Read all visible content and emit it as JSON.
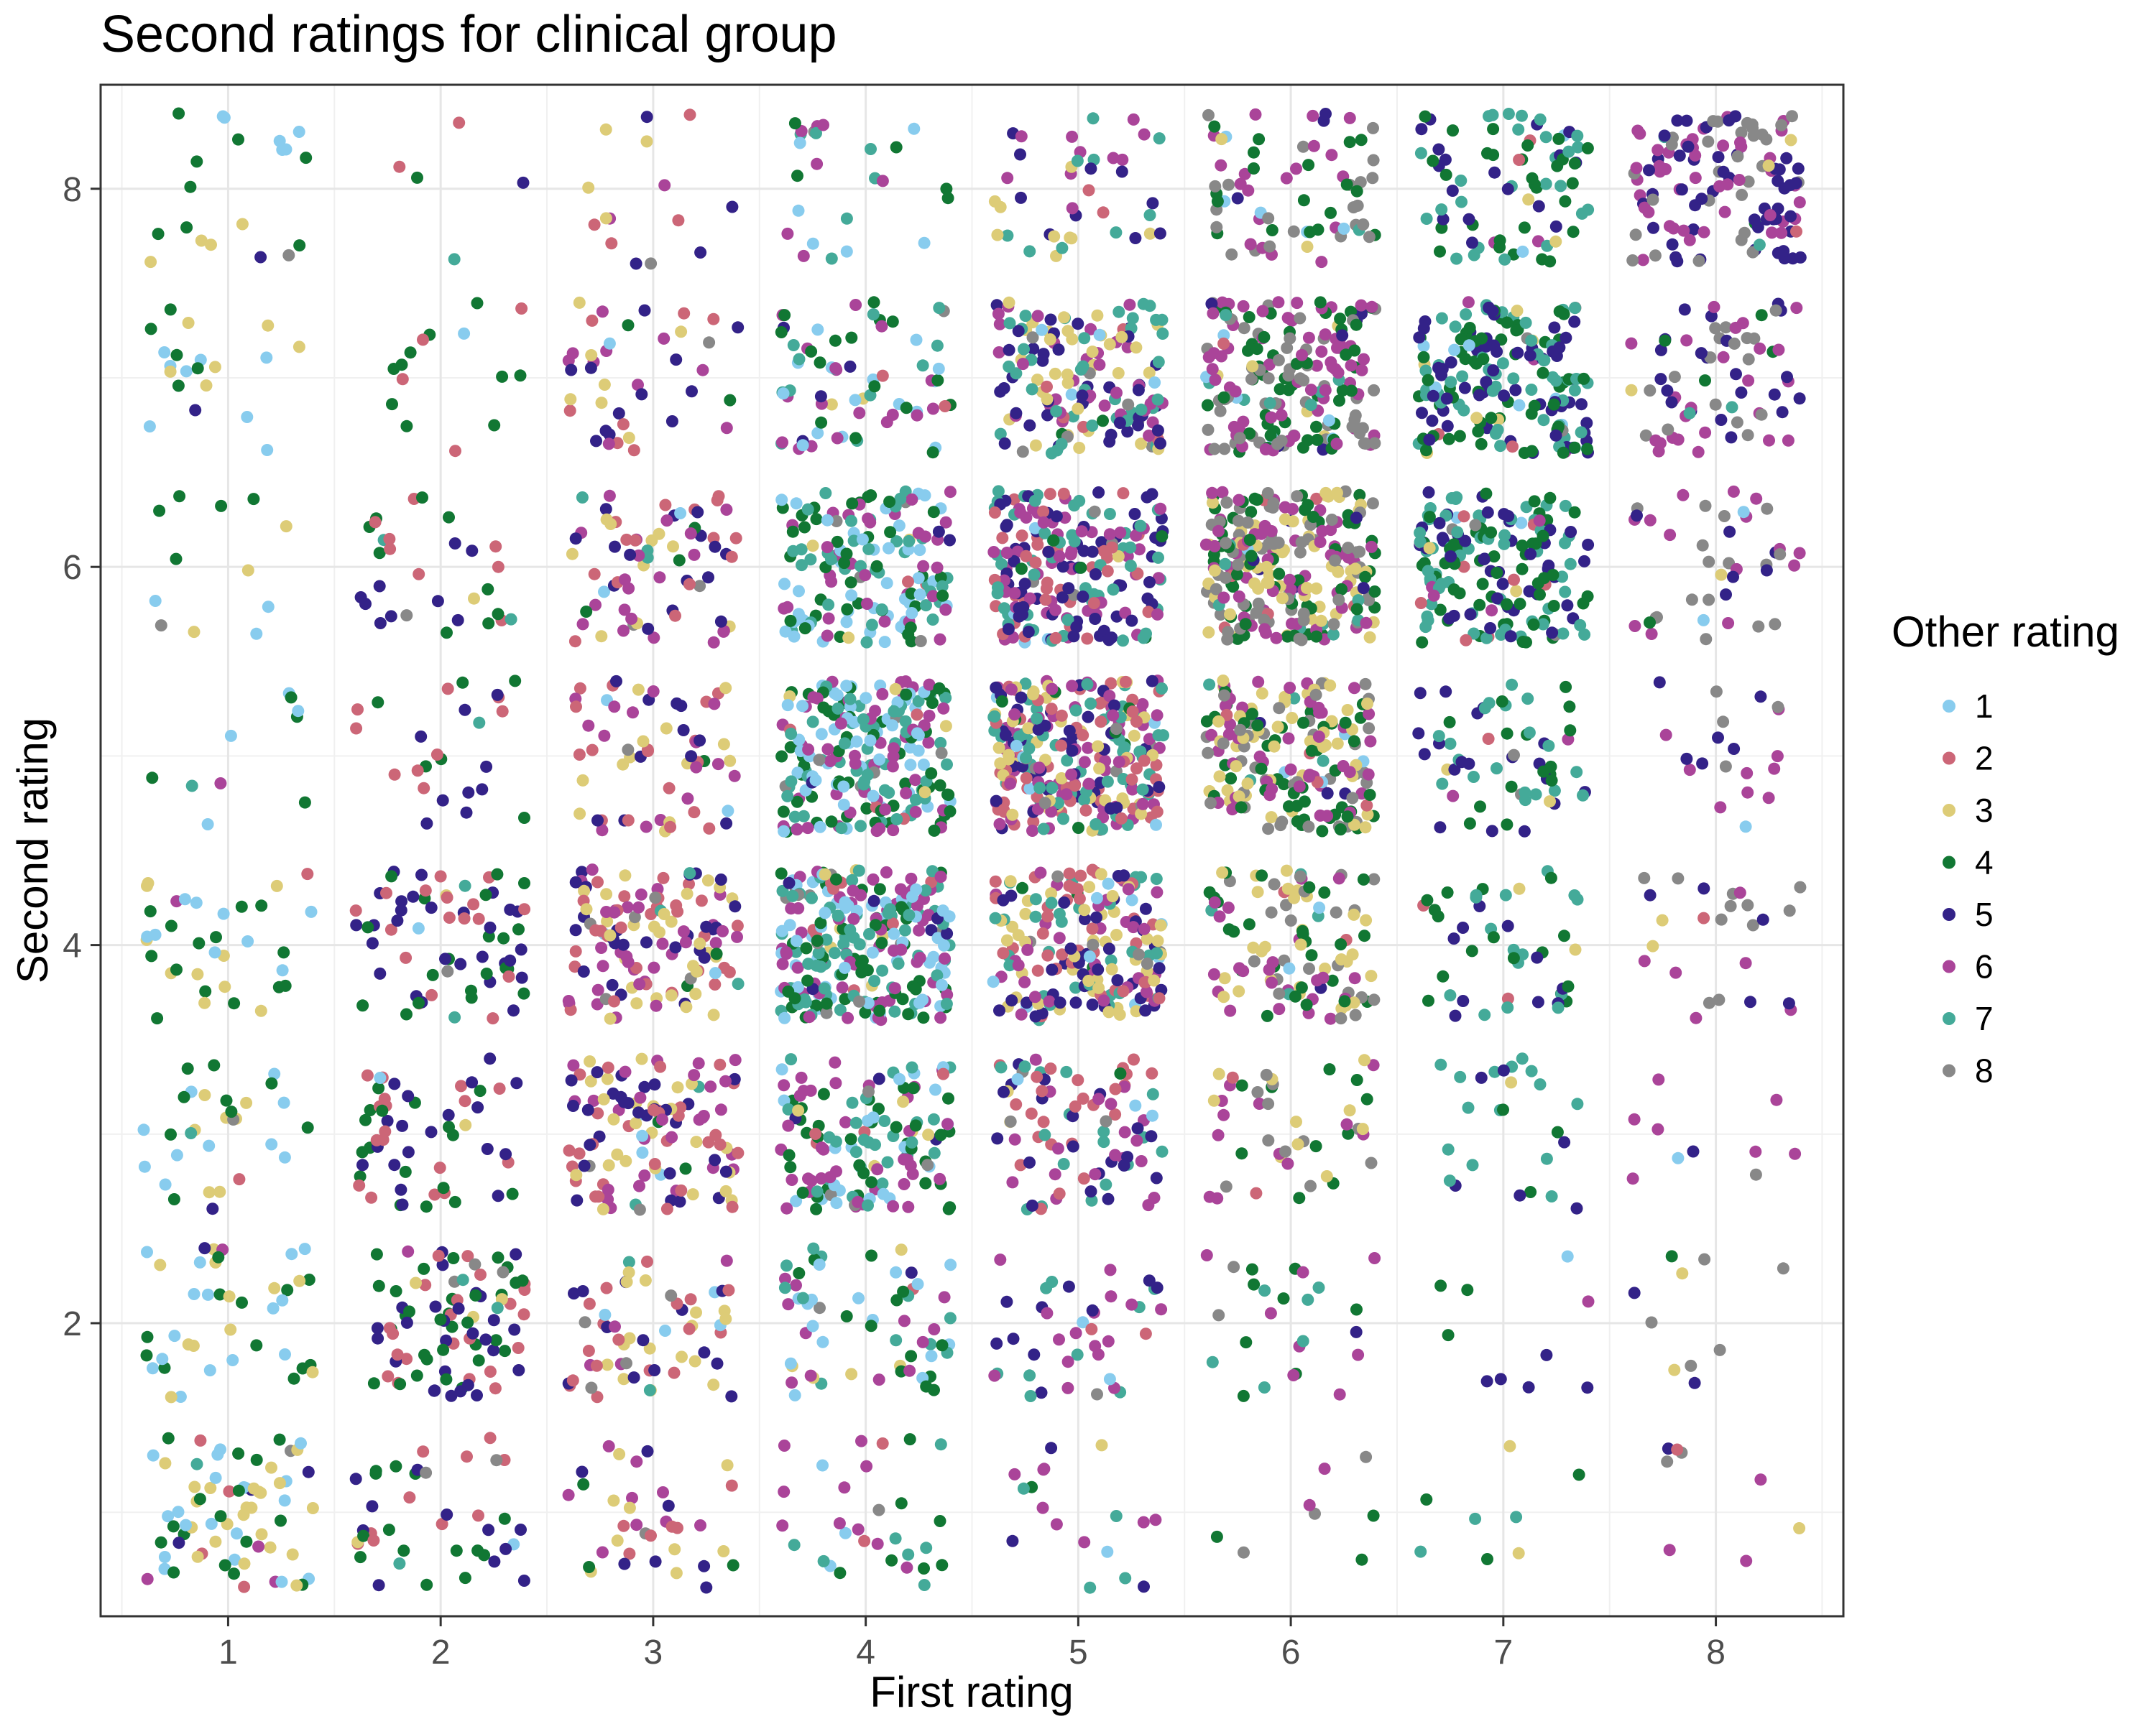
{
  "chart_data": {
    "type": "scatter",
    "title": "Second ratings for clinical group",
    "xlabel": "First rating",
    "ylabel": "Second rating",
    "xlim": [
      0.4,
      8.6
    ],
    "ylim": [
      0.45,
      8.55
    ],
    "xticks": [
      1,
      2,
      3,
      4,
      5,
      6,
      7,
      8
    ],
    "yticks": [
      2,
      4,
      6,
      8
    ],
    "grid": true,
    "jitter": 0.4,
    "legend": {
      "title": "Other rating",
      "placement": "right",
      "entries": [
        {
          "label": "1",
          "color": "#88CCEE"
        },
        {
          "label": "2",
          "color": "#CC6677"
        },
        {
          "label": "3",
          "color": "#DDCC77"
        },
        {
          "label": "4",
          "color": "#117733"
        },
        {
          "label": "5",
          "color": "#332288"
        },
        {
          "label": "6",
          "color": "#AA4499"
        },
        {
          "label": "7",
          "color": "#44AA99"
        },
        {
          "label": "8",
          "color": "#888888"
        }
      ]
    },
    "cells": {
      "x": [
        1,
        2,
        3,
        4,
        5,
        6,
        7,
        8
      ],
      "y": [
        1,
        2,
        3,
        4,
        5,
        6,
        7,
        8
      ],
      "counts": [
        [
          70,
          40,
          35,
          30,
          18,
          8,
          8,
          8
        ],
        [
          40,
          90,
          60,
          60,
          40,
          25,
          10,
          10
        ],
        [
          30,
          55,
          120,
          140,
          90,
          45,
          25,
          10
        ],
        [
          35,
          70,
          130,
          260,
          200,
          110,
          45,
          25
        ],
        [
          10,
          25,
          60,
          230,
          300,
          200,
          60,
          20
        ],
        [
          12,
          30,
          70,
          160,
          220,
          260,
          180,
          40
        ],
        [
          20,
          15,
          40,
          70,
          160,
          200,
          190,
          70
        ],
        [
          20,
          5,
          15,
          25,
          40,
          70,
          80,
          130
        ]
      ],
      "dominant_other_ratings": [
        [
          [
            1,
            4,
            3
          ],
          [
            2,
            4,
            5
          ],
          [
            3,
            5,
            2,
            6
          ],
          [
            4,
            6,
            7,
            1
          ],
          [
            5,
            6,
            7
          ],
          [
            6,
            4,
            8
          ],
          [
            7,
            4,
            5
          ],
          [
            8,
            6,
            5
          ]
        ],
        [
          [
            1,
            4,
            3
          ],
          [
            2,
            5,
            4
          ],
          [
            3,
            5,
            2,
            6
          ],
          [
            4,
            6,
            7,
            1
          ],
          [
            5,
            6,
            7
          ],
          [
            6,
            4,
            7
          ],
          [
            7,
            4,
            5
          ],
          [
            8,
            6,
            5
          ]
        ],
        [
          [
            1,
            4,
            3
          ],
          [
            2,
            4,
            5
          ],
          [
            3,
            5,
            2,
            6
          ],
          [
            4,
            6,
            7,
            1
          ],
          [
            5,
            2,
            6,
            7
          ],
          [
            6,
            4,
            8,
            3
          ],
          [
            7,
            4,
            5
          ],
          [
            8,
            6,
            5
          ]
        ],
        [
          [
            1,
            4,
            3
          ],
          [
            2,
            4,
            5
          ],
          [
            3,
            5,
            2,
            6
          ],
          [
            4,
            6,
            7,
            1
          ],
          [
            5,
            2,
            6,
            3,
            7
          ],
          [
            6,
            4,
            8,
            3
          ],
          [
            7,
            4,
            5
          ],
          [
            8,
            6,
            5
          ]
        ],
        [
          [
            1,
            4,
            3
          ],
          [
            2,
            4,
            5
          ],
          [
            3,
            5,
            2,
            6
          ],
          [
            4,
            6,
            7,
            1
          ],
          [
            5,
            2,
            6,
            3,
            7
          ],
          [
            6,
            4,
            8,
            3
          ],
          [
            7,
            4,
            5
          ],
          [
            8,
            6,
            5
          ]
        ],
        [
          [
            1,
            4,
            3
          ],
          [
            2,
            4,
            5
          ],
          [
            3,
            5,
            2,
            6
          ],
          [
            4,
            6,
            7,
            1
          ],
          [
            5,
            2,
            6,
            7
          ],
          [
            6,
            4,
            8,
            3
          ],
          [
            7,
            4,
            5
          ],
          [
            8,
            6,
            5
          ]
        ],
        [
          [
            1,
            4,
            3
          ],
          [
            2,
            4,
            5
          ],
          [
            3,
            5,
            2,
            6
          ],
          [
            4,
            6,
            7,
            1
          ],
          [
            5,
            6,
            7,
            3
          ],
          [
            6,
            4,
            8
          ],
          [
            7,
            4,
            5
          ],
          [
            8,
            6,
            5
          ]
        ],
        [
          [
            1,
            4,
            3
          ],
          [
            2,
            4,
            5
          ],
          [
            3,
            5,
            2,
            6
          ],
          [
            4,
            6,
            7,
            1
          ],
          [
            5,
            6,
            7,
            3
          ],
          [
            6,
            4,
            8
          ],
          [
            7,
            4,
            5
          ],
          [
            8,
            6,
            5
          ]
        ]
      ]
    }
  }
}
